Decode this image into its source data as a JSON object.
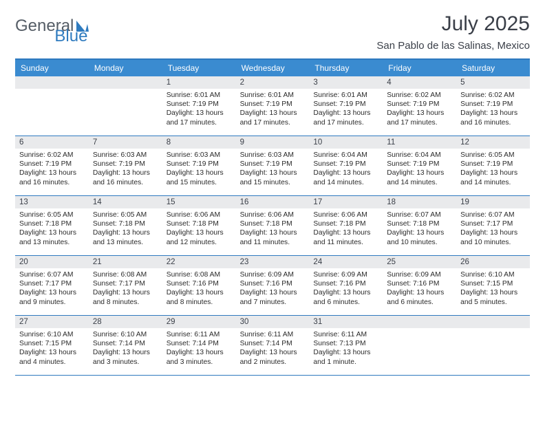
{
  "logo": {
    "word1": "General",
    "word2": "Blue",
    "word1_color": "#555d66",
    "word2_color": "#2f7bbf",
    "shape_color": "#2f7bbf"
  },
  "title": {
    "month": "July 2025",
    "location": "San Pablo de las Salinas, Mexico"
  },
  "colors": {
    "header_bg": "#3a8bd0",
    "rule": "#2e79bf",
    "datebar_bg": "#e9eaec",
    "text": "#3a3f48"
  },
  "dayNames": [
    "Sunday",
    "Monday",
    "Tuesday",
    "Wednesday",
    "Thursday",
    "Friday",
    "Saturday"
  ],
  "weeks": [
    [
      {
        "blank": true
      },
      {
        "blank": true
      },
      {
        "date": "1",
        "sunrise": "Sunrise: 6:01 AM",
        "sunset": "Sunset: 7:19 PM",
        "day1": "Daylight: 13 hours",
        "day2": "and 17 minutes."
      },
      {
        "date": "2",
        "sunrise": "Sunrise: 6:01 AM",
        "sunset": "Sunset: 7:19 PM",
        "day1": "Daylight: 13 hours",
        "day2": "and 17 minutes."
      },
      {
        "date": "3",
        "sunrise": "Sunrise: 6:01 AM",
        "sunset": "Sunset: 7:19 PM",
        "day1": "Daylight: 13 hours",
        "day2": "and 17 minutes."
      },
      {
        "date": "4",
        "sunrise": "Sunrise: 6:02 AM",
        "sunset": "Sunset: 7:19 PM",
        "day1": "Daylight: 13 hours",
        "day2": "and 17 minutes."
      },
      {
        "date": "5",
        "sunrise": "Sunrise: 6:02 AM",
        "sunset": "Sunset: 7:19 PM",
        "day1": "Daylight: 13 hours",
        "day2": "and 16 minutes."
      }
    ],
    [
      {
        "date": "6",
        "sunrise": "Sunrise: 6:02 AM",
        "sunset": "Sunset: 7:19 PM",
        "day1": "Daylight: 13 hours",
        "day2": "and 16 minutes."
      },
      {
        "date": "7",
        "sunrise": "Sunrise: 6:03 AM",
        "sunset": "Sunset: 7:19 PM",
        "day1": "Daylight: 13 hours",
        "day2": "and 16 minutes."
      },
      {
        "date": "8",
        "sunrise": "Sunrise: 6:03 AM",
        "sunset": "Sunset: 7:19 PM",
        "day1": "Daylight: 13 hours",
        "day2": "and 15 minutes."
      },
      {
        "date": "9",
        "sunrise": "Sunrise: 6:03 AM",
        "sunset": "Sunset: 7:19 PM",
        "day1": "Daylight: 13 hours",
        "day2": "and 15 minutes."
      },
      {
        "date": "10",
        "sunrise": "Sunrise: 6:04 AM",
        "sunset": "Sunset: 7:19 PM",
        "day1": "Daylight: 13 hours",
        "day2": "and 14 minutes."
      },
      {
        "date": "11",
        "sunrise": "Sunrise: 6:04 AM",
        "sunset": "Sunset: 7:19 PM",
        "day1": "Daylight: 13 hours",
        "day2": "and 14 minutes."
      },
      {
        "date": "12",
        "sunrise": "Sunrise: 6:05 AM",
        "sunset": "Sunset: 7:19 PM",
        "day1": "Daylight: 13 hours",
        "day2": "and 14 minutes."
      }
    ],
    [
      {
        "date": "13",
        "sunrise": "Sunrise: 6:05 AM",
        "sunset": "Sunset: 7:18 PM",
        "day1": "Daylight: 13 hours",
        "day2": "and 13 minutes."
      },
      {
        "date": "14",
        "sunrise": "Sunrise: 6:05 AM",
        "sunset": "Sunset: 7:18 PM",
        "day1": "Daylight: 13 hours",
        "day2": "and 13 minutes."
      },
      {
        "date": "15",
        "sunrise": "Sunrise: 6:06 AM",
        "sunset": "Sunset: 7:18 PM",
        "day1": "Daylight: 13 hours",
        "day2": "and 12 minutes."
      },
      {
        "date": "16",
        "sunrise": "Sunrise: 6:06 AM",
        "sunset": "Sunset: 7:18 PM",
        "day1": "Daylight: 13 hours",
        "day2": "and 11 minutes."
      },
      {
        "date": "17",
        "sunrise": "Sunrise: 6:06 AM",
        "sunset": "Sunset: 7:18 PM",
        "day1": "Daylight: 13 hours",
        "day2": "and 11 minutes."
      },
      {
        "date": "18",
        "sunrise": "Sunrise: 6:07 AM",
        "sunset": "Sunset: 7:18 PM",
        "day1": "Daylight: 13 hours",
        "day2": "and 10 minutes."
      },
      {
        "date": "19",
        "sunrise": "Sunrise: 6:07 AM",
        "sunset": "Sunset: 7:17 PM",
        "day1": "Daylight: 13 hours",
        "day2": "and 10 minutes."
      }
    ],
    [
      {
        "date": "20",
        "sunrise": "Sunrise: 6:07 AM",
        "sunset": "Sunset: 7:17 PM",
        "day1": "Daylight: 13 hours",
        "day2": "and 9 minutes."
      },
      {
        "date": "21",
        "sunrise": "Sunrise: 6:08 AM",
        "sunset": "Sunset: 7:17 PM",
        "day1": "Daylight: 13 hours",
        "day2": "and 8 minutes."
      },
      {
        "date": "22",
        "sunrise": "Sunrise: 6:08 AM",
        "sunset": "Sunset: 7:16 PM",
        "day1": "Daylight: 13 hours",
        "day2": "and 8 minutes."
      },
      {
        "date": "23",
        "sunrise": "Sunrise: 6:09 AM",
        "sunset": "Sunset: 7:16 PM",
        "day1": "Daylight: 13 hours",
        "day2": "and 7 minutes."
      },
      {
        "date": "24",
        "sunrise": "Sunrise: 6:09 AM",
        "sunset": "Sunset: 7:16 PM",
        "day1": "Daylight: 13 hours",
        "day2": "and 6 minutes."
      },
      {
        "date": "25",
        "sunrise": "Sunrise: 6:09 AM",
        "sunset": "Sunset: 7:16 PM",
        "day1": "Daylight: 13 hours",
        "day2": "and 6 minutes."
      },
      {
        "date": "26",
        "sunrise": "Sunrise: 6:10 AM",
        "sunset": "Sunset: 7:15 PM",
        "day1": "Daylight: 13 hours",
        "day2": "and 5 minutes."
      }
    ],
    [
      {
        "date": "27",
        "sunrise": "Sunrise: 6:10 AM",
        "sunset": "Sunset: 7:15 PM",
        "day1": "Daylight: 13 hours",
        "day2": "and 4 minutes."
      },
      {
        "date": "28",
        "sunrise": "Sunrise: 6:10 AM",
        "sunset": "Sunset: 7:14 PM",
        "day1": "Daylight: 13 hours",
        "day2": "and 3 minutes."
      },
      {
        "date": "29",
        "sunrise": "Sunrise: 6:11 AM",
        "sunset": "Sunset: 7:14 PM",
        "day1": "Daylight: 13 hours",
        "day2": "and 3 minutes."
      },
      {
        "date": "30",
        "sunrise": "Sunrise: 6:11 AM",
        "sunset": "Sunset: 7:14 PM",
        "day1": "Daylight: 13 hours",
        "day2": "and 2 minutes."
      },
      {
        "date": "31",
        "sunrise": "Sunrise: 6:11 AM",
        "sunset": "Sunset: 7:13 PM",
        "day1": "Daylight: 13 hours",
        "day2": "and 1 minute."
      },
      {
        "blank": true
      },
      {
        "blank": true
      }
    ]
  ]
}
